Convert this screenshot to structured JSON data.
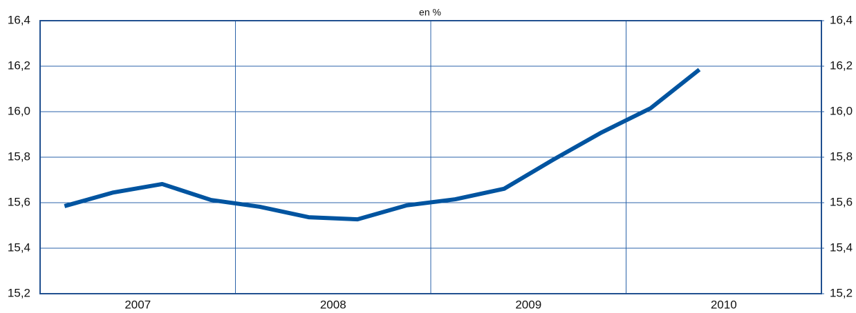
{
  "chart_data": {
    "type": "line",
    "subtitle": "en %",
    "x": [
      2007.125,
      2007.375,
      2007.625,
      2007.875,
      2008.125,
      2008.375,
      2008.625,
      2008.875,
      2009.125,
      2009.375,
      2009.625,
      2009.875,
      2010.125,
      2010.375
    ],
    "series": [
      {
        "color": "#0054a0",
        "values": [
          15.585,
          15.645,
          15.682,
          15.612,
          15.582,
          15.536,
          15.527,
          15.588,
          15.615,
          15.661,
          15.788,
          15.909,
          16.015,
          16.185
        ]
      }
    ],
    "xlim": [
      2007,
      2011
    ],
    "xticks": [
      {
        "value": 2007.5,
        "label": "2007"
      },
      {
        "value": 2008.5,
        "label": "2008"
      },
      {
        "value": 2009.5,
        "label": "2009"
      },
      {
        "value": 2010.5,
        "label": "2010"
      }
    ],
    "xgrid": [
      2008,
      2009,
      2010
    ],
    "ylim": [
      15.2,
      16.4
    ],
    "yticks": [
      {
        "value": 15.2,
        "label": "15,2"
      },
      {
        "value": 15.4,
        "label": "15,4"
      },
      {
        "value": 15.6,
        "label": "15,6"
      },
      {
        "value": 15.8,
        "label": "15,8"
      },
      {
        "value": 16.0,
        "label": "16,0"
      },
      {
        "value": 16.2,
        "label": "16,2"
      },
      {
        "value": 16.4,
        "label": "16,4"
      }
    ],
    "y2lim": [
      15.2,
      16.4
    ],
    "y2ticks": [
      {
        "value": 15.2,
        "label": "15,2"
      },
      {
        "value": 15.4,
        "label": "15,4"
      },
      {
        "value": 15.6,
        "label": "15,6"
      },
      {
        "value": 15.8,
        "label": "15,8"
      },
      {
        "value": 16.0,
        "label": "16,0"
      },
      {
        "value": 16.2,
        "label": "16,2"
      },
      {
        "value": 16.4,
        "label": "16,4"
      }
    ],
    "grid": true
  }
}
